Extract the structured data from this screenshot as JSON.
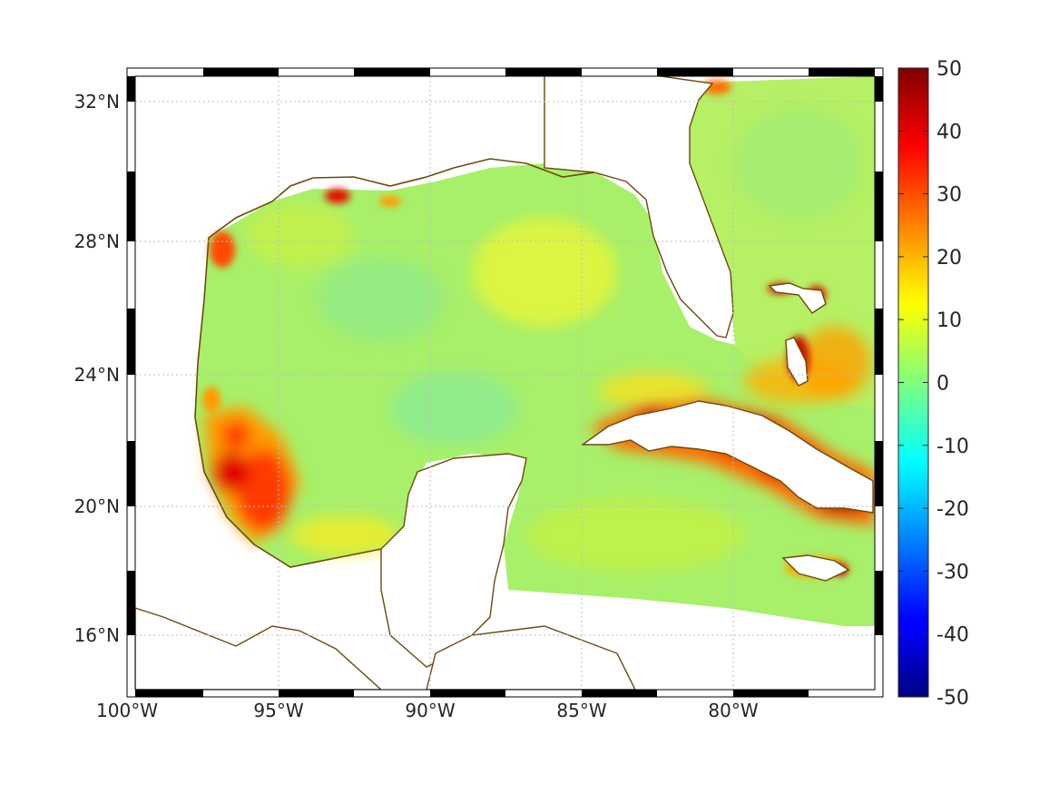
{
  "map": {
    "latitude_labels": [
      "32°N",
      "28°N",
      "24°N",
      "20°N",
      "16°N"
    ],
    "longitude_labels": [
      "100°W",
      "95°W",
      "90°W",
      "85°W",
      "80°W"
    ],
    "grid": "dotted",
    "frame": "black-white checkered border",
    "coastline_color": "#6b4a10",
    "land_color": "#ffffff"
  },
  "colorbar": {
    "ticks": [
      "50",
      "40",
      "30",
      "20",
      "10",
      "0",
      "-10",
      "-20",
      "-30",
      "-40",
      "-50"
    ],
    "range": [
      -50,
      50
    ],
    "colormap": "jet"
  },
  "field": {
    "background_level": 5,
    "features": [
      {
        "name": "cuba",
        "value": 35
      },
      {
        "name": "western-gulf-mexico-coast",
        "value": 28
      },
      {
        "name": "bahamas",
        "value": 22
      },
      {
        "name": "jamaica",
        "value": 25
      },
      {
        "name": "texas-coast",
        "value": 25
      }
    ]
  }
}
